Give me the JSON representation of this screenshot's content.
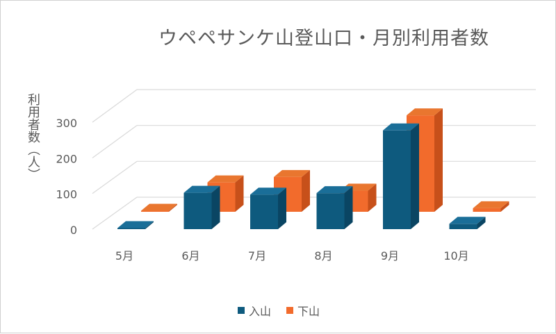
{
  "chart_data": {
    "type": "bar",
    "title": "ウペペサンケ山登山口・月別利用者数",
    "ylabel": "利用者数（人）",
    "xlabel": "",
    "categories": [
      "5月",
      "6月",
      "7月",
      "8月",
      "9月",
      "10月"
    ],
    "series": [
      {
        "name": "入山",
        "values": [
          2,
          102,
          97,
          101,
          277,
          15
        ],
        "color": "#0E5A7E",
        "side": "#0A4563",
        "top": "#1A6E98"
      },
      {
        "name": "下山",
        "values": [
          2,
          82,
          97,
          59,
          269,
          10
        ],
        "color": "#F26B2C",
        "side": "#C7501A",
        "top": "#E9762F"
      }
    ],
    "yticks": [
      0,
      100,
      200,
      300
    ],
    "ylim": [
      0,
      300
    ],
    "grid": true,
    "legend": "bottom",
    "style": "3d-column"
  }
}
